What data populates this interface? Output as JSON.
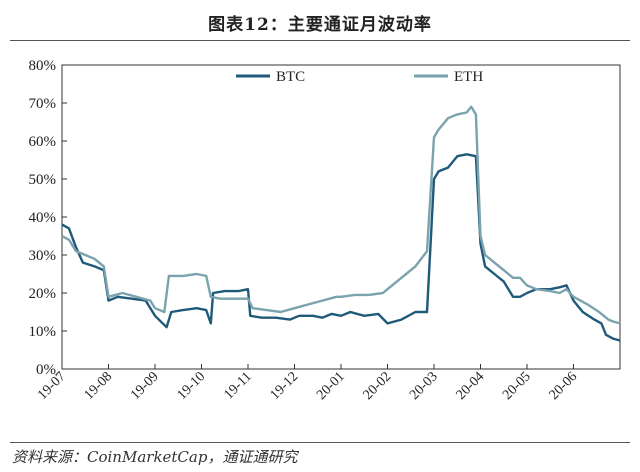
{
  "figure": {
    "title": "图表12：主要通证月波动率",
    "source": "资料来源：CoinMarketCap，通证通研究"
  },
  "chart_data": {
    "type": "line",
    "title": "图表12：主要通证月波动率",
    "xlabel": "",
    "ylabel": "",
    "ylim": [
      0,
      80
    ],
    "y_unit": "%",
    "y_ticks": [
      "0%",
      "10%",
      "20%",
      "30%",
      "40%",
      "50%",
      "60%",
      "70%",
      "80%"
    ],
    "x_ticks": [
      "19-07",
      "19-08",
      "19-09",
      "19-10",
      "19-11",
      "19-12",
      "20-01",
      "20-02",
      "20-03",
      "20-04",
      "20-05",
      "20-06"
    ],
    "x_range": [
      0,
      12
    ],
    "grid": false,
    "legend_position": "top",
    "series": [
      {
        "name": "BTC",
        "color": "#1f5a7a",
        "points": [
          [
            0.0,
            38
          ],
          [
            0.15,
            37
          ],
          [
            0.3,
            32
          ],
          [
            0.45,
            28
          ],
          [
            0.7,
            27
          ],
          [
            0.9,
            26
          ],
          [
            1.0,
            18
          ],
          [
            1.2,
            19
          ],
          [
            1.5,
            18.5
          ],
          [
            1.8,
            18
          ],
          [
            2.0,
            14
          ],
          [
            2.25,
            11
          ],
          [
            2.35,
            15
          ],
          [
            2.6,
            15.5
          ],
          [
            2.9,
            16
          ],
          [
            3.1,
            15.5
          ],
          [
            3.2,
            12
          ],
          [
            3.25,
            20
          ],
          [
            3.5,
            20.5
          ],
          [
            3.8,
            20.5
          ],
          [
            4.0,
            21
          ],
          [
            4.05,
            14
          ],
          [
            4.3,
            13.5
          ],
          [
            4.6,
            13.5
          ],
          [
            4.9,
            13
          ],
          [
            5.1,
            14
          ],
          [
            5.4,
            14
          ],
          [
            5.6,
            13.5
          ],
          [
            5.8,
            14.5
          ],
          [
            6.0,
            14
          ],
          [
            6.2,
            15
          ],
          [
            6.5,
            14
          ],
          [
            6.8,
            14.5
          ],
          [
            7.0,
            12
          ],
          [
            7.3,
            13
          ],
          [
            7.6,
            15
          ],
          [
            7.85,
            15
          ],
          [
            8.0,
            50
          ],
          [
            8.1,
            52
          ],
          [
            8.3,
            53
          ],
          [
            8.5,
            56
          ],
          [
            8.7,
            56.5
          ],
          [
            8.9,
            56
          ],
          [
            9.0,
            33
          ],
          [
            9.1,
            27
          ],
          [
            9.3,
            25
          ],
          [
            9.5,
            23
          ],
          [
            9.7,
            19
          ],
          [
            9.85,
            19
          ],
          [
            10.0,
            20
          ],
          [
            10.2,
            21
          ],
          [
            10.5,
            21
          ],
          [
            10.7,
            21.5
          ],
          [
            10.85,
            22
          ],
          [
            11.0,
            18
          ],
          [
            11.2,
            15
          ],
          [
            11.45,
            13
          ],
          [
            11.6,
            12
          ],
          [
            11.7,
            9
          ],
          [
            11.85,
            8
          ],
          [
            12.0,
            7.5
          ]
        ]
      },
      {
        "name": "ETH",
        "color": "#7aa3ad",
        "points": [
          [
            0.0,
            35
          ],
          [
            0.15,
            34
          ],
          [
            0.3,
            31
          ],
          [
            0.5,
            30
          ],
          [
            0.7,
            29
          ],
          [
            0.9,
            27
          ],
          [
            1.0,
            19
          ],
          [
            1.3,
            20
          ],
          [
            1.6,
            19
          ],
          [
            1.9,
            18
          ],
          [
            2.0,
            16
          ],
          [
            2.2,
            15
          ],
          [
            2.3,
            24.5
          ],
          [
            2.6,
            24.5
          ],
          [
            2.9,
            25
          ],
          [
            3.1,
            24.5
          ],
          [
            3.2,
            19
          ],
          [
            3.4,
            18.5
          ],
          [
            3.7,
            18.5
          ],
          [
            4.0,
            18.5
          ],
          [
            4.1,
            16
          ],
          [
            4.4,
            15.5
          ],
          [
            4.7,
            15
          ],
          [
            5.0,
            16
          ],
          [
            5.3,
            17
          ],
          [
            5.6,
            18
          ],
          [
            5.9,
            19
          ],
          [
            6.0,
            19
          ],
          [
            6.3,
            19.5
          ],
          [
            6.6,
            19.5
          ],
          [
            6.9,
            20
          ],
          [
            7.0,
            21
          ],
          [
            7.3,
            24
          ],
          [
            7.6,
            27
          ],
          [
            7.85,
            31
          ],
          [
            8.0,
            61
          ],
          [
            8.1,
            63
          ],
          [
            8.3,
            66
          ],
          [
            8.5,
            67
          ],
          [
            8.7,
            67.5
          ],
          [
            8.8,
            69
          ],
          [
            8.9,
            67
          ],
          [
            9.0,
            35
          ],
          [
            9.1,
            30
          ],
          [
            9.3,
            28
          ],
          [
            9.5,
            26
          ],
          [
            9.7,
            24
          ],
          [
            9.85,
            24
          ],
          [
            10.0,
            22
          ],
          [
            10.2,
            21
          ],
          [
            10.5,
            20.5
          ],
          [
            10.7,
            20
          ],
          [
            10.85,
            21
          ],
          [
            11.0,
            19
          ],
          [
            11.3,
            17
          ],
          [
            11.55,
            15
          ],
          [
            11.65,
            14
          ],
          [
            11.75,
            13
          ],
          [
            11.85,
            12.5
          ],
          [
            12.0,
            12
          ]
        ]
      }
    ]
  }
}
